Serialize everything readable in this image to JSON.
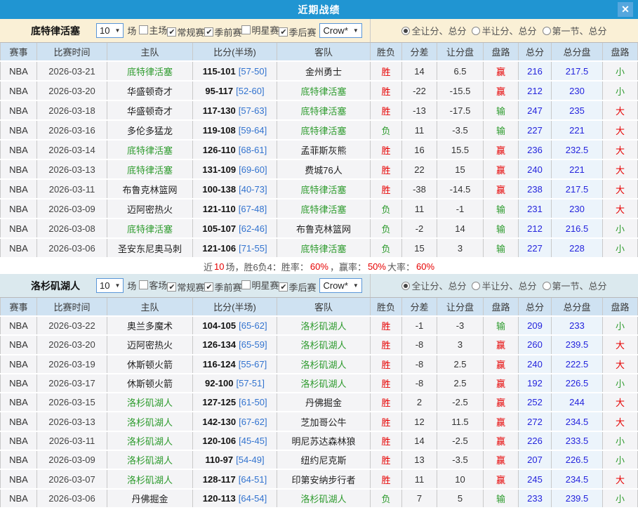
{
  "titlebar": {
    "title": "近期战绩"
  },
  "icons": {
    "close": "✕",
    "check": "✔",
    "caret": "▼"
  },
  "colors": {
    "titlebar_blue": "#2095d2",
    "close_blue": "#55a7de",
    "pistons_header_bg": "#faf0d6",
    "lakers_header_bg": "#dbe9ee",
    "table_header_bg": "#cfe2f2",
    "row_bg": "#f4f4f6",
    "win_red": "#e60000",
    "loss_green": "#2e9b2e",
    "total_blue": "#2424dd",
    "half_blue": "#3273cf"
  },
  "win_chars": [
    "胜",
    "赢",
    "大"
  ],
  "table_headers": [
    "赛事",
    "比赛时间",
    "主队",
    "比分(半场)",
    "客队",
    "胜负",
    "分差",
    "让分盘",
    "盘路",
    "总分",
    "总分盘",
    "盘路"
  ],
  "sections": [
    {
      "team": "底特律活塞",
      "header_bg": "#faf0d6",
      "games_select": "10",
      "games_suffix": "场",
      "checkboxes": [
        {
          "label": "主场",
          "checked": false
        },
        {
          "label": "常规赛",
          "checked": true
        },
        {
          "label": "季前赛",
          "checked": true
        },
        {
          "label": "明星赛",
          "checked": false
        },
        {
          "label": "季后赛",
          "checked": true
        }
      ],
      "player_select": "Crow*",
      "radios": [
        {
          "label": "全让分、总分",
          "selected": true
        },
        {
          "label": "半让分、总分",
          "selected": false
        },
        {
          "label": "第一节、总分",
          "selected": false
        }
      ],
      "rows": [
        {
          "league": "NBA",
          "date": "2026-03-21",
          "home": "底特律活塞",
          "home_hl": true,
          "score": "115-101",
          "half": "[57-50]",
          "away": "金州勇士",
          "away_hl": false,
          "result": "胜",
          "diff": "14",
          "spread": "6.5",
          "spread_result": "赢",
          "total": "216",
          "total_line": "217.5",
          "ou": "小"
        },
        {
          "league": "NBA",
          "date": "2026-03-20",
          "home": "华盛顿奇才",
          "home_hl": false,
          "score": "95-117",
          "half": "[52-60]",
          "away": "底特律活塞",
          "away_hl": true,
          "result": "胜",
          "diff": "-22",
          "spread": "-15.5",
          "spread_result": "赢",
          "total": "212",
          "total_line": "230",
          "ou": "小"
        },
        {
          "league": "NBA",
          "date": "2026-03-18",
          "home": "华盛顿奇才",
          "home_hl": false,
          "score": "117-130",
          "half": "[57-63]",
          "away": "底特律活塞",
          "away_hl": true,
          "result": "胜",
          "diff": "-13",
          "spread": "-17.5",
          "spread_result": "输",
          "total": "247",
          "total_line": "235",
          "ou": "大"
        },
        {
          "league": "NBA",
          "date": "2026-03-16",
          "home": "多伦多猛龙",
          "home_hl": false,
          "score": "119-108",
          "half": "[59-64]",
          "away": "底特律活塞",
          "away_hl": true,
          "result": "负",
          "diff": "11",
          "spread": "-3.5",
          "spread_result": "输",
          "total": "227",
          "total_line": "221",
          "ou": "大"
        },
        {
          "league": "NBA",
          "date": "2026-03-14",
          "home": "底特律活塞",
          "home_hl": true,
          "score": "126-110",
          "half": "[68-61]",
          "away": "孟菲斯灰熊",
          "away_hl": false,
          "result": "胜",
          "diff": "16",
          "spread": "15.5",
          "spread_result": "赢",
          "total": "236",
          "total_line": "232.5",
          "ou": "大"
        },
        {
          "league": "NBA",
          "date": "2026-03-13",
          "home": "底特律活塞",
          "home_hl": true,
          "score": "131-109",
          "half": "[69-60]",
          "away": "费城76人",
          "away_hl": false,
          "result": "胜",
          "diff": "22",
          "spread": "15",
          "spread_result": "赢",
          "total": "240",
          "total_line": "221",
          "ou": "大"
        },
        {
          "league": "NBA",
          "date": "2026-03-11",
          "home": "布鲁克林篮网",
          "home_hl": false,
          "score": "100-138",
          "half": "[40-73]",
          "away": "底特律活塞",
          "away_hl": true,
          "result": "胜",
          "diff": "-38",
          "spread": "-14.5",
          "spread_result": "赢",
          "total": "238",
          "total_line": "217.5",
          "ou": "大"
        },
        {
          "league": "NBA",
          "date": "2026-03-09",
          "home": "迈阿密热火",
          "home_hl": false,
          "score": "121-110",
          "half": "[67-48]",
          "away": "底特律活塞",
          "away_hl": true,
          "result": "负",
          "diff": "11",
          "spread": "-1",
          "spread_result": "输",
          "total": "231",
          "total_line": "230",
          "ou": "大"
        },
        {
          "league": "NBA",
          "date": "2026-03-08",
          "home": "底特律活塞",
          "home_hl": true,
          "score": "105-107",
          "half": "[62-46]",
          "away": "布鲁克林篮网",
          "away_hl": false,
          "result": "负",
          "diff": "-2",
          "spread": "14",
          "spread_result": "输",
          "total": "212",
          "total_line": "216.5",
          "ou": "小"
        },
        {
          "league": "NBA",
          "date": "2026-03-06",
          "home": "圣安东尼奥马刺",
          "home_hl": false,
          "score": "121-106",
          "half": "[71-55]",
          "away": "底特律活塞",
          "away_hl": true,
          "result": "负",
          "diff": "15",
          "spread": "3",
          "spread_result": "输",
          "total": "227",
          "total_line": "228",
          "ou": "小"
        }
      ],
      "summary": [
        {
          "t": "近 ",
          "c": ""
        },
        {
          "t": "10",
          "c": "r"
        },
        {
          "t": " 场，胜6负4：胜率：",
          "c": ""
        },
        {
          "t": "60%",
          "c": "r"
        },
        {
          "t": "，赢率：",
          "c": ""
        },
        {
          "t": "50%",
          "c": "r"
        },
        {
          "t": " 大率：",
          "c": ""
        },
        {
          "t": "60%",
          "c": "r"
        }
      ]
    },
    {
      "team": "洛杉矶湖人",
      "header_bg": "#dbe9ee",
      "games_select": "10",
      "games_suffix": "场",
      "checkboxes": [
        {
          "label": "客场",
          "checked": false
        },
        {
          "label": "常规赛",
          "checked": true
        },
        {
          "label": "季前赛",
          "checked": true
        },
        {
          "label": "明星赛",
          "checked": false
        },
        {
          "label": "季后赛",
          "checked": true
        }
      ],
      "player_select": "Crow*",
      "radios": [
        {
          "label": "全让分、总分",
          "selected": true
        },
        {
          "label": "半让分、总分",
          "selected": false
        },
        {
          "label": "第一节、总分",
          "selected": false
        }
      ],
      "rows": [
        {
          "league": "NBA",
          "date": "2026-03-22",
          "home": "奥兰多魔术",
          "home_hl": false,
          "score": "104-105",
          "half": "[65-62]",
          "away": "洛杉矶湖人",
          "away_hl": true,
          "result": "胜",
          "diff": "-1",
          "spread": "-3",
          "spread_result": "输",
          "total": "209",
          "total_line": "233",
          "ou": "小"
        },
        {
          "league": "NBA",
          "date": "2026-03-20",
          "home": "迈阿密热火",
          "home_hl": false,
          "score": "126-134",
          "half": "[65-59]",
          "away": "洛杉矶湖人",
          "away_hl": true,
          "result": "胜",
          "diff": "-8",
          "spread": "3",
          "spread_result": "赢",
          "total": "260",
          "total_line": "239.5",
          "ou": "大"
        },
        {
          "league": "NBA",
          "date": "2026-03-19",
          "home": "休斯顿火箭",
          "home_hl": false,
          "score": "116-124",
          "half": "[55-67]",
          "away": "洛杉矶湖人",
          "away_hl": true,
          "result": "胜",
          "diff": "-8",
          "spread": "2.5",
          "spread_result": "赢",
          "total": "240",
          "total_line": "222.5",
          "ou": "大"
        },
        {
          "league": "NBA",
          "date": "2026-03-17",
          "home": "休斯顿火箭",
          "home_hl": false,
          "score": "92-100",
          "half": "[57-51]",
          "away": "洛杉矶湖人",
          "away_hl": true,
          "result": "胜",
          "diff": "-8",
          "spread": "2.5",
          "spread_result": "赢",
          "total": "192",
          "total_line": "226.5",
          "ou": "小"
        },
        {
          "league": "NBA",
          "date": "2026-03-15",
          "home": "洛杉矶湖人",
          "home_hl": true,
          "score": "127-125",
          "half": "[61-50]",
          "away": "丹佛掘金",
          "away_hl": false,
          "result": "胜",
          "diff": "2",
          "spread": "-2.5",
          "spread_result": "赢",
          "total": "252",
          "total_line": "244",
          "ou": "大"
        },
        {
          "league": "NBA",
          "date": "2026-03-13",
          "home": "洛杉矶湖人",
          "home_hl": true,
          "score": "142-130",
          "half": "[67-62]",
          "away": "芝加哥公牛",
          "away_hl": false,
          "result": "胜",
          "diff": "12",
          "spread": "11.5",
          "spread_result": "赢",
          "total": "272",
          "total_line": "234.5",
          "ou": "大"
        },
        {
          "league": "NBA",
          "date": "2026-03-11",
          "home": "洛杉矶湖人",
          "home_hl": true,
          "score": "120-106",
          "half": "[45-45]",
          "away": "明尼苏达森林狼",
          "away_hl": false,
          "result": "胜",
          "diff": "14",
          "spread": "-2.5",
          "spread_result": "赢",
          "total": "226",
          "total_line": "233.5",
          "ou": "小"
        },
        {
          "league": "NBA",
          "date": "2026-03-09",
          "home": "洛杉矶湖人",
          "home_hl": true,
          "score": "110-97",
          "half": "[54-49]",
          "away": "纽约尼克斯",
          "away_hl": false,
          "result": "胜",
          "diff": "13",
          "spread": "-3.5",
          "spread_result": "赢",
          "total": "207",
          "total_line": "226.5",
          "ou": "小"
        },
        {
          "league": "NBA",
          "date": "2026-03-07",
          "home": "洛杉矶湖人",
          "home_hl": true,
          "score": "128-117",
          "half": "[64-51]",
          "away": "印第安纳步行者",
          "away_hl": false,
          "result": "胜",
          "diff": "11",
          "spread": "10",
          "spread_result": "赢",
          "total": "245",
          "total_line": "234.5",
          "ou": "大"
        },
        {
          "league": "NBA",
          "date": "2026-03-06",
          "home": "丹佛掘金",
          "home_hl": false,
          "score": "120-113",
          "half": "[64-54]",
          "away": "洛杉矶湖人",
          "away_hl": true,
          "result": "负",
          "diff": "7",
          "spread": "5",
          "spread_result": "输",
          "total": "233",
          "total_line": "239.5",
          "ou": "小"
        }
      ],
      "summary": null
    }
  ]
}
